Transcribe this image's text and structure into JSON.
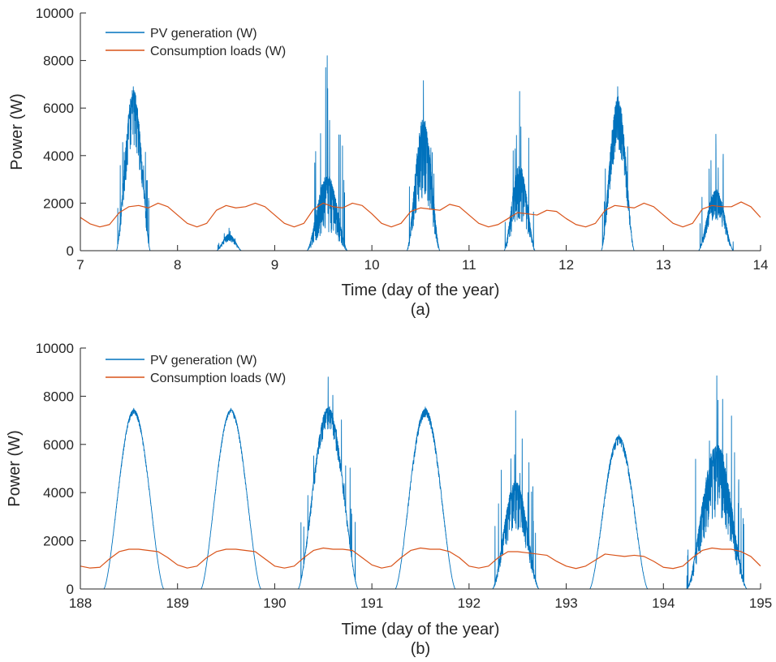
{
  "colors": {
    "pv": "#0072BD",
    "load": "#D95319",
    "axis": "#262626"
  },
  "chart_data": [
    {
      "type": "line",
      "panel_label": "(a)",
      "xlabel": "Time (day of the year)",
      "ylabel": "Power (W)",
      "xlim": [
        7,
        14
      ],
      "ylim": [
        0,
        10000
      ],
      "xticks": [
        7,
        8,
        9,
        10,
        11,
        12,
        13,
        14
      ],
      "yticks": [
        0,
        2000,
        4000,
        6000,
        8000,
        10000
      ],
      "grid": false,
      "legend_position": "top-left",
      "series": [
        {
          "name": "PV generation (W)",
          "color_key": "pv",
          "style": "noisy",
          "days": [
            {
              "start": 7.37,
              "end": 7.72,
              "peak": 6800,
              "max": 6900,
              "noise": 0.35
            },
            {
              "start": 8.4,
              "end": 8.66,
              "peak": 700,
              "max": 950,
              "noise": 0.45
            },
            {
              "start": 9.33,
              "end": 9.75,
              "peak": 3200,
              "max": 8200,
              "noise": 0.75
            },
            {
              "start": 10.36,
              "end": 10.7,
              "peak": 5600,
              "max": 7150,
              "noise": 0.6
            },
            {
              "start": 11.36,
              "end": 11.68,
              "peak": 3600,
              "max": 6700,
              "noise": 0.65
            },
            {
              "start": 12.36,
              "end": 12.7,
              "peak": 6500,
              "max": 6900,
              "noise": 0.35
            },
            {
              "start": 13.36,
              "end": 13.72,
              "peak": 2600,
              "max": 4900,
              "noise": 0.5
            }
          ]
        },
        {
          "name": "Consumption loads (W)",
          "color_key": "load",
          "style": "smooth",
          "points": [
            [
              7.0,
              1400
            ],
            [
              7.1,
              1130
            ],
            [
              7.2,
              1000
            ],
            [
              7.3,
              1100
            ],
            [
              7.4,
              1600
            ],
            [
              7.5,
              1850
            ],
            [
              7.6,
              1900
            ],
            [
              7.7,
              1800
            ],
            [
              7.8,
              2000
            ],
            [
              7.9,
              1850
            ],
            [
              8.0,
              1500
            ],
            [
              8.1,
              1150
            ],
            [
              8.2,
              1000
            ],
            [
              8.3,
              1150
            ],
            [
              8.4,
              1700
            ],
            [
              8.5,
              1900
            ],
            [
              8.6,
              1800
            ],
            [
              8.7,
              1850
            ],
            [
              8.8,
              2000
            ],
            [
              8.9,
              1850
            ],
            [
              9.0,
              1500
            ],
            [
              9.1,
              1150
            ],
            [
              9.2,
              1000
            ],
            [
              9.3,
              1150
            ],
            [
              9.4,
              1750
            ],
            [
              9.5,
              2000
            ],
            [
              9.6,
              1850
            ],
            [
              9.7,
              1800
            ],
            [
              9.8,
              2000
            ],
            [
              9.9,
              1900
            ],
            [
              10.0,
              1550
            ],
            [
              10.1,
              1150
            ],
            [
              10.2,
              1000
            ],
            [
              10.3,
              1150
            ],
            [
              10.4,
              1650
            ],
            [
              10.5,
              1800
            ],
            [
              10.6,
              1750
            ],
            [
              10.7,
              1700
            ],
            [
              10.8,
              1950
            ],
            [
              10.9,
              1850
            ],
            [
              11.0,
              1500
            ],
            [
              11.1,
              1150
            ],
            [
              11.2,
              1000
            ],
            [
              11.3,
              1100
            ],
            [
              11.4,
              1350
            ],
            [
              11.5,
              1600
            ],
            [
              11.6,
              1550
            ],
            [
              11.7,
              1500
            ],
            [
              11.8,
              1700
            ],
            [
              11.9,
              1650
            ],
            [
              12.0,
              1350
            ],
            [
              12.1,
              1100
            ],
            [
              12.2,
              1000
            ],
            [
              12.3,
              1150
            ],
            [
              12.4,
              1700
            ],
            [
              12.5,
              1900
            ],
            [
              12.6,
              1850
            ],
            [
              12.7,
              1800
            ],
            [
              12.8,
              2000
            ],
            [
              12.9,
              1850
            ],
            [
              13.0,
              1500
            ],
            [
              13.1,
              1150
            ],
            [
              13.2,
              1000
            ],
            [
              13.3,
              1150
            ],
            [
              13.4,
              1750
            ],
            [
              13.5,
              1900
            ],
            [
              13.6,
              1850
            ],
            [
              13.7,
              1850
            ],
            [
              13.8,
              2050
            ],
            [
              13.9,
              1850
            ],
            [
              14.0,
              1400
            ]
          ]
        }
      ]
    },
    {
      "type": "line",
      "panel_label": "(b)",
      "xlabel": "Time (day of the year)",
      "ylabel": "Power (W)",
      "xlim": [
        188,
        195
      ],
      "ylim": [
        0,
        10000
      ],
      "xticks": [
        188,
        189,
        190,
        191,
        192,
        193,
        194,
        195
      ],
      "yticks": [
        0,
        2000,
        4000,
        6000,
        8000,
        10000
      ],
      "grid": false,
      "legend_position": "top-left",
      "series": [
        {
          "name": "PV generation (W)",
          "color_key": "pv",
          "style": "mixed",
          "days": [
            {
              "start": 188.24,
              "end": 188.86,
              "peak": 7450,
              "max": 7500,
              "noise": 0.03
            },
            {
              "start": 189.24,
              "end": 189.86,
              "peak": 7450,
              "max": 7500,
              "noise": 0.03
            },
            {
              "start": 190.24,
              "end": 190.86,
              "peak": 7550,
              "max": 8800,
              "noise": 0.12
            },
            {
              "start": 191.24,
              "end": 191.86,
              "peak": 7500,
              "max": 7550,
              "noise": 0.05
            },
            {
              "start": 192.24,
              "end": 192.72,
              "peak": 4500,
              "max": 7400,
              "noise": 0.45
            },
            {
              "start": 193.24,
              "end": 193.84,
              "peak": 6350,
              "max": 6400,
              "noise": 0.06
            },
            {
              "start": 194.24,
              "end": 194.86,
              "peak": 6000,
              "max": 8850,
              "noise": 0.5
            }
          ]
        },
        {
          "name": "Consumption loads (W)",
          "color_key": "load",
          "style": "smooth",
          "points": [
            [
              188.0,
              950
            ],
            [
              188.1,
              870
            ],
            [
              188.2,
              900
            ],
            [
              188.3,
              1250
            ],
            [
              188.4,
              1550
            ],
            [
              188.5,
              1650
            ],
            [
              188.6,
              1650
            ],
            [
              188.7,
              1600
            ],
            [
              188.8,
              1550
            ],
            [
              188.9,
              1300
            ],
            [
              189.0,
              1000
            ],
            [
              189.1,
              870
            ],
            [
              189.2,
              950
            ],
            [
              189.3,
              1300
            ],
            [
              189.4,
              1550
            ],
            [
              189.5,
              1650
            ],
            [
              189.6,
              1650
            ],
            [
              189.7,
              1600
            ],
            [
              189.8,
              1550
            ],
            [
              189.9,
              1250
            ],
            [
              190.0,
              950
            ],
            [
              190.1,
              870
            ],
            [
              190.2,
              950
            ],
            [
              190.3,
              1300
            ],
            [
              190.4,
              1600
            ],
            [
              190.5,
              1700
            ],
            [
              190.6,
              1650
            ],
            [
              190.7,
              1650
            ],
            [
              190.8,
              1600
            ],
            [
              190.9,
              1300
            ],
            [
              191.0,
              1000
            ],
            [
              191.1,
              870
            ],
            [
              191.2,
              950
            ],
            [
              191.3,
              1300
            ],
            [
              191.4,
              1600
            ],
            [
              191.5,
              1700
            ],
            [
              191.6,
              1650
            ],
            [
              191.7,
              1650
            ],
            [
              191.8,
              1550
            ],
            [
              191.9,
              1300
            ],
            [
              192.0,
              950
            ],
            [
              192.1,
              870
            ],
            [
              192.2,
              950
            ],
            [
              192.3,
              1300
            ],
            [
              192.4,
              1550
            ],
            [
              192.5,
              1550
            ],
            [
              192.6,
              1500
            ],
            [
              192.7,
              1450
            ],
            [
              192.8,
              1400
            ],
            [
              192.9,
              1150
            ],
            [
              193.0,
              950
            ],
            [
              193.1,
              850
            ],
            [
              193.2,
              950
            ],
            [
              193.3,
              1200
            ],
            [
              193.4,
              1450
            ],
            [
              193.5,
              1400
            ],
            [
              193.6,
              1350
            ],
            [
              193.7,
              1400
            ],
            [
              193.8,
              1350
            ],
            [
              193.9,
              1150
            ],
            [
              194.0,
              900
            ],
            [
              194.1,
              850
            ],
            [
              194.2,
              950
            ],
            [
              194.3,
              1300
            ],
            [
              194.4,
              1600
            ],
            [
              194.5,
              1700
            ],
            [
              194.6,
              1650
            ],
            [
              194.7,
              1650
            ],
            [
              194.8,
              1550
            ],
            [
              194.9,
              1350
            ],
            [
              195.0,
              950
            ]
          ]
        }
      ]
    }
  ]
}
